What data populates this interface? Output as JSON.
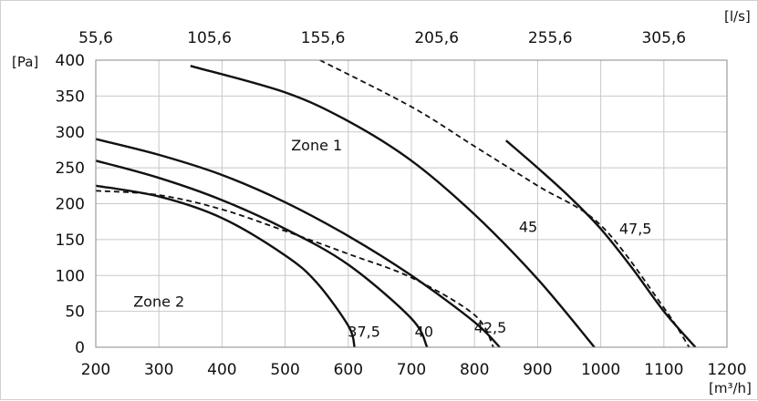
{
  "chart_data": {
    "type": "line",
    "xlabel": "[m³/h]",
    "x2label": "[l/s]",
    "ylabel": "[Pa]",
    "xlim": [
      200,
      1200
    ],
    "ylim": [
      0,
      400
    ],
    "x_ticks": [
      200,
      300,
      400,
      500,
      600,
      700,
      800,
      900,
      1000,
      1100,
      1200
    ],
    "x_tick_labels": [
      "200",
      "300",
      "400",
      "500",
      "600",
      "700",
      "800",
      "900",
      "1000",
      "1100",
      "1200"
    ],
    "y_ticks": [
      0,
      50,
      100,
      150,
      200,
      250,
      300,
      350,
      400
    ],
    "y_tick_labels": [
      "0",
      "50",
      "100",
      "150",
      "200",
      "250",
      "300",
      "350",
      "400"
    ],
    "x2_ticks": [
      200,
      380,
      560,
      740,
      920,
      1100
    ],
    "x2_tick_labels": [
      "55,6",
      "105,6",
      "155,6",
      "205,6",
      "255,6",
      "305,6"
    ],
    "grid": true,
    "series": [
      {
        "name": "37,5",
        "style": "solid",
        "points": [
          [
            200,
            225
          ],
          [
            300,
            210
          ],
          [
            400,
            180
          ],
          [
            500,
            128
          ],
          [
            550,
            90
          ],
          [
            600,
            30
          ],
          [
            610,
            0
          ]
        ]
      },
      {
        "name": "40",
        "style": "solid",
        "points": [
          [
            200,
            260
          ],
          [
            300,
            236
          ],
          [
            400,
            205
          ],
          [
            500,
            165
          ],
          [
            600,
            115
          ],
          [
            700,
            40
          ],
          [
            725,
            0
          ]
        ]
      },
      {
        "name": "42,5",
        "style": "solid",
        "points": [
          [
            200,
            290
          ],
          [
            300,
            268
          ],
          [
            400,
            240
          ],
          [
            500,
            202
          ],
          [
            600,
            155
          ],
          [
            700,
            100
          ],
          [
            800,
            35
          ],
          [
            840,
            0
          ]
        ]
      },
      {
        "name": "45",
        "style": "solid",
        "points": [
          [
            350,
            392
          ],
          [
            500,
            355
          ],
          [
            600,
            315
          ],
          [
            700,
            260
          ],
          [
            800,
            185
          ],
          [
            900,
            95
          ],
          [
            990,
            0
          ]
        ]
      },
      {
        "name": "47,5",
        "style": "solid",
        "points": [
          [
            850,
            288
          ],
          [
            900,
            250
          ],
          [
            950,
            210
          ],
          [
            1000,
            165
          ],
          [
            1050,
            110
          ],
          [
            1100,
            50
          ],
          [
            1150,
            0
          ]
        ]
      }
    ],
    "boundaries": [
      {
        "style": "dashed",
        "points": [
          [
            200,
            218
          ],
          [
            300,
            212
          ],
          [
            400,
            192
          ],
          [
            500,
            162
          ],
          [
            600,
            130
          ],
          [
            700,
            97
          ],
          [
            800,
            45
          ],
          [
            830,
            0
          ]
        ]
      },
      {
        "style": "dashed",
        "points": [
          [
            555,
            400
          ],
          [
            700,
            335
          ],
          [
            800,
            280
          ],
          [
            900,
            225
          ],
          [
            1000,
            170
          ],
          [
            1100,
            55
          ],
          [
            1140,
            0
          ]
        ]
      }
    ],
    "annotations": [
      {
        "text": "Zone 1",
        "x": 550,
        "y": 282
      },
      {
        "text": "Zone 2",
        "x": 300,
        "y": 64
      },
      {
        "text": "37,5",
        "x": 625,
        "y": 22
      },
      {
        "text": "40",
        "x": 720,
        "y": 22
      },
      {
        "text": "42,5",
        "x": 825,
        "y": 28
      },
      {
        "text": "45",
        "x": 885,
        "y": 168
      },
      {
        "text": "47,5",
        "x": 1055,
        "y": 166
      }
    ]
  }
}
